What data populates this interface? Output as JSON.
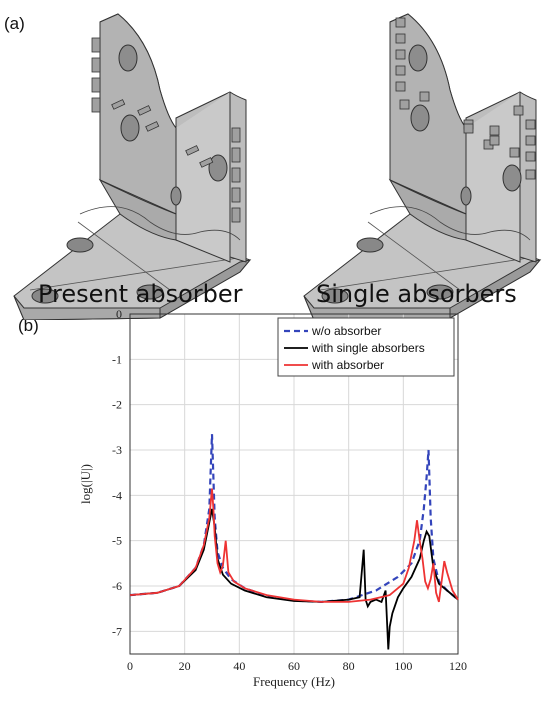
{
  "panel_a_label": "(a)",
  "panel_b_label": "(b)",
  "captions": {
    "left": "Present absorber",
    "right": "Single absorbers"
  },
  "chart_data": {
    "type": "line",
    "title": "",
    "xlabel": "Frequency (Hz)",
    "ylabel": "log(|U|)",
    "xlim": [
      0,
      120
    ],
    "ylim": [
      -7.5,
      0
    ],
    "xticks": [
      0,
      20,
      40,
      60,
      80,
      100,
      120
    ],
    "yticks": [
      0,
      -1,
      -2,
      -3,
      -4,
      -5,
      -6,
      -7
    ],
    "grid": true,
    "legend": "top-right",
    "series": [
      {
        "name": "w/o absorber",
        "color": "#3344bb",
        "dash": "dashed",
        "x": [
          0,
          10,
          18,
          24,
          27,
          29,
          30,
          31,
          32,
          34,
          37,
          42,
          50,
          60,
          70,
          80,
          90,
          98,
          103,
          106,
          107.5,
          108.5,
          109.2,
          110,
          111,
          113,
          116,
          120
        ],
        "y": [
          -6.2,
          -6.15,
          -6.0,
          -5.6,
          -5.1,
          -4.3,
          -2.65,
          -4.5,
          -5.25,
          -5.6,
          -5.85,
          -6.05,
          -6.22,
          -6.32,
          -6.35,
          -6.3,
          -6.1,
          -5.8,
          -5.5,
          -5.0,
          -4.3,
          -3.6,
          -3.0,
          -4.5,
          -5.4,
          -5.9,
          -6.1,
          -6.3
        ]
      },
      {
        "name": "with single absorbers",
        "color": "#000000",
        "dash": "solid",
        "x": [
          0,
          10,
          18,
          24,
          27,
          29,
          30,
          31,
          32,
          34,
          37,
          42,
          50,
          60,
          70,
          80,
          84,
          85.5,
          86.2,
          87,
          88,
          90,
          92,
          93.5,
          94.5,
          95,
          96,
          98,
          100,
          103,
          106,
          107.5,
          108.5,
          109.5,
          111,
          113,
          116,
          120
        ],
        "y": [
          -6.2,
          -6.15,
          -6.0,
          -5.65,
          -5.2,
          -4.6,
          -4.3,
          -4.7,
          -5.4,
          -5.75,
          -5.95,
          -6.1,
          -6.25,
          -6.33,
          -6.35,
          -6.3,
          -6.25,
          -5.2,
          -6.3,
          -6.45,
          -6.35,
          -6.3,
          -6.35,
          -6.1,
          -7.4,
          -6.9,
          -6.6,
          -6.25,
          -6.05,
          -5.8,
          -5.4,
          -5.0,
          -4.8,
          -4.9,
          -5.6,
          -5.95,
          -6.1,
          -6.3
        ]
      },
      {
        "name": "with absorber",
        "color": "#ee3333",
        "dash": "solid",
        "x": [
          0,
          10,
          18,
          24,
          27,
          29,
          30,
          30.5,
          31,
          32,
          33,
          34,
          35,
          36,
          38,
          42,
          50,
          60,
          70,
          80,
          88,
          95,
          100,
          102,
          104,
          105,
          106,
          107,
          108,
          109,
          110,
          111,
          112,
          113,
          114,
          115,
          116,
          118,
          120
        ],
        "y": [
          -6.2,
          -6.15,
          -6.0,
          -5.6,
          -5.1,
          -4.5,
          -3.85,
          -4.3,
          -4.9,
          -5.5,
          -5.7,
          -5.55,
          -5.0,
          -5.7,
          -5.9,
          -6.05,
          -6.2,
          -6.3,
          -6.35,
          -6.35,
          -6.3,
          -6.2,
          -5.95,
          -5.6,
          -5.0,
          -4.55,
          -5.0,
          -5.4,
          -5.9,
          -6.05,
          -5.85,
          -5.5,
          -6.15,
          -6.35,
          -5.9,
          -5.45,
          -5.7,
          -6.1,
          -6.3
        ]
      }
    ]
  }
}
